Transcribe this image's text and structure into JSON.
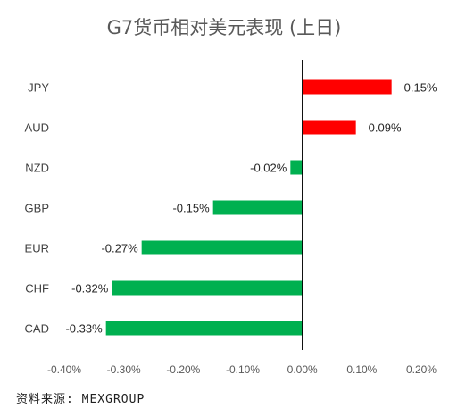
{
  "chart_data": {
    "type": "bar",
    "orientation": "horizontal",
    "title": "G7货币相对美元表现 (上日)",
    "categories": [
      "JPY",
      "AUD",
      "NZD",
      "GBP",
      "EUR",
      "CHF",
      "CAD"
    ],
    "values": [
      0.15,
      0.09,
      -0.02,
      -0.15,
      -0.27,
      -0.32,
      -0.33
    ],
    "value_labels": [
      "0.15%",
      "0.09%",
      "-0.02%",
      "-0.15%",
      "-0.27%",
      "-0.32%",
      "-0.33%"
    ],
    "xlim": [
      -0.4,
      0.2
    ],
    "x_ticks": [
      -0.4,
      -0.3,
      -0.2,
      -0.1,
      0.0,
      0.1,
      0.2
    ],
    "x_tick_labels": [
      "-0.40%",
      "-0.30%",
      "-0.20%",
      "-0.10%",
      "0.00%",
      "0.10%",
      "0.20%"
    ],
    "grid": false,
    "legend": "none",
    "colors": {
      "positive": "#ff0000",
      "negative": "#00b050",
      "axis": "#000000"
    }
  },
  "source": "资料来源: MEXGROUP"
}
